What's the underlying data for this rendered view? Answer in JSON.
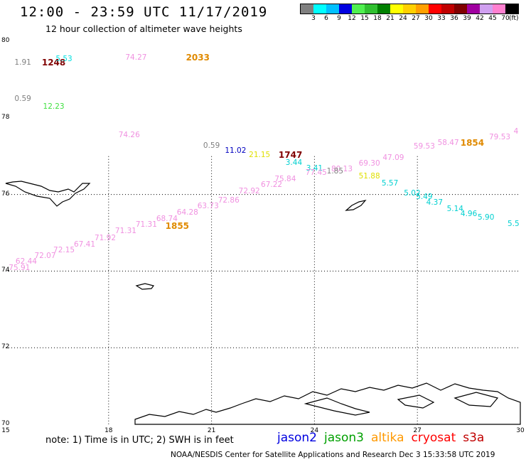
{
  "header": {
    "title": "12:00 - 23:59 UTC 11/17/2019",
    "subtitle": "12 hour collection of altimeter wave heights"
  },
  "colorbar": {
    "colors": [
      "#808080",
      "#00ffff",
      "#00c0ff",
      "#0000e0",
      "#50f050",
      "#30c030",
      "#008000",
      "#ffff00",
      "#ffd000",
      "#ffa000",
      "#ff0000",
      "#c00000",
      "#800000",
      "#a000a0",
      "#d0a0f0",
      "#ff80d0",
      "#000000"
    ],
    "labels": [
      "3",
      "6",
      "9",
      "12",
      "15",
      "18",
      "21",
      "24",
      "27",
      "30",
      "33",
      "36",
      "39",
      "42",
      "45",
      "70"
    ],
    "unit": "(ft)"
  },
  "axes": {
    "y_labels": [
      "80",
      "78",
      "76",
      "74",
      "72",
      "70"
    ],
    "x_labels": [
      "15",
      "18",
      "21",
      "24",
      "27",
      "30"
    ]
  },
  "map_data": {
    "lat_range": [
      70,
      80
    ],
    "lon_range": [
      15,
      30
    ],
    "labels": [
      {
        "text": "1.91",
        "lon": 15.5,
        "lat": 79.44,
        "color": "#808080"
      },
      {
        "text": "1248",
        "lon": 16.4,
        "lat": 79.44,
        "color": "#800000",
        "ship": true
      },
      {
        "text": "5.53",
        "lon": 16.7,
        "lat": 79.53,
        "color": "#00e0e0"
      },
      {
        "text": "74.27",
        "lon": 18.8,
        "lat": 79.57,
        "color": "#f090e0"
      },
      {
        "text": "2033",
        "lon": 20.6,
        "lat": 79.57,
        "color": "#e08a00",
        "ship": true
      },
      {
        "text": "0.59",
        "lon": 15.5,
        "lat": 78.49,
        "color": "#808080"
      },
      {
        "text": "12.23",
        "lon": 16.4,
        "lat": 78.3,
        "color": "#40e040"
      },
      {
        "text": "74.26",
        "lon": 18.6,
        "lat": 77.55,
        "color": "#f090e0"
      },
      {
        "text": "0.59",
        "lon": 21.0,
        "lat": 77.27,
        "color": "#808080"
      },
      {
        "text": "11.02",
        "lon": 21.7,
        "lat": 77.15,
        "color": "#0000c0"
      },
      {
        "text": "21.15",
        "lon": 22.4,
        "lat": 77.04,
        "color": "#e0e000"
      },
      {
        "text": "1747",
        "lon": 23.3,
        "lat": 77.04,
        "color": "#800000",
        "ship": true
      },
      {
        "text": "3.44",
        "lon": 23.4,
        "lat": 76.83,
        "color": "#00d0d0"
      },
      {
        "text": "3.41",
        "lon": 24.0,
        "lat": 76.68,
        "color": "#00d0d0"
      },
      {
        "text": "80.13",
        "lon": 24.8,
        "lat": 76.66,
        "color": "#f090e0"
      },
      {
        "text": "69.30",
        "lon": 25.6,
        "lat": 76.81,
        "color": "#f090e0"
      },
      {
        "text": "47.09",
        "lon": 26.3,
        "lat": 76.96,
        "color": "#f090e0"
      },
      {
        "text": "1.85",
        "lon": 24.6,
        "lat": 76.6,
        "color": "#808080"
      },
      {
        "text": "77.45",
        "lon": 24.05,
        "lat": 76.57,
        "color": "#f090e0"
      },
      {
        "text": "51.88",
        "lon": 25.6,
        "lat": 76.47,
        "color": "#e0e000"
      },
      {
        "text": "75.84",
        "lon": 23.15,
        "lat": 76.41,
        "color": "#f090e0"
      },
      {
        "text": "5.57",
        "lon": 26.2,
        "lat": 76.29,
        "color": "#00d0d0"
      },
      {
        "text": "67.22",
        "lon": 22.75,
        "lat": 76.25,
        "color": "#f090e0"
      },
      {
        "text": "5.02",
        "lon": 26.85,
        "lat": 76.03,
        "color": "#00d0d0"
      },
      {
        "text": "72.92",
        "lon": 22.1,
        "lat": 76.08,
        "color": "#f090e0"
      },
      {
        "text": "5.49",
        "lon": 27.2,
        "lat": 75.93,
        "color": "#00d0d0"
      },
      {
        "text": "72.86",
        "lon": 21.5,
        "lat": 75.84,
        "color": "#f090e0"
      },
      {
        "text": "4.37",
        "lon": 27.5,
        "lat": 75.79,
        "color": "#00d0d0"
      },
      {
        "text": "63.73",
        "lon": 20.9,
        "lat": 75.7,
        "color": "#f090e0"
      },
      {
        "text": "5.14",
        "lon": 28.1,
        "lat": 75.62,
        "color": "#00d0d0"
      },
      {
        "text": "64.28",
        "lon": 20.3,
        "lat": 75.53,
        "color": "#f090e0"
      },
      {
        "text": "4.96",
        "lon": 28.5,
        "lat": 75.5,
        "color": "#00d0d0"
      },
      {
        "text": "68.74",
        "lon": 19.7,
        "lat": 75.36,
        "color": "#f090e0"
      },
      {
        "text": "5.90",
        "lon": 29.0,
        "lat": 75.4,
        "color": "#00d0d0"
      },
      {
        "text": "71.31",
        "lon": 19.1,
        "lat": 75.21,
        "color": "#f090e0"
      },
      {
        "text": "1855",
        "lon": 20.0,
        "lat": 75.17,
        "color": "#e08a00",
        "ship": true
      },
      {
        "text": "5.5",
        "lon": 29.8,
        "lat": 75.24,
        "color": "#00d0d0"
      },
      {
        "text": "71.31",
        "lon": 18.5,
        "lat": 75.05,
        "color": "#f090e0"
      },
      {
        "text": "71.92",
        "lon": 17.9,
        "lat": 74.87,
        "color": "#f090e0"
      },
      {
        "text": "67.41",
        "lon": 17.3,
        "lat": 74.7,
        "color": "#f090e0"
      },
      {
        "text": "72.15",
        "lon": 16.7,
        "lat": 74.55,
        "color": "#f090e0"
      },
      {
        "text": "72.07",
        "lon": 16.15,
        "lat": 74.4,
        "color": "#f090e0"
      },
      {
        "text": "62.44",
        "lon": 15.6,
        "lat": 74.25,
        "color": "#f090e0"
      },
      {
        "text": "75.91",
        "lon": 15.4,
        "lat": 74.09,
        "color": "#f090e0"
      },
      {
        "text": "59.53",
        "lon": 27.2,
        "lat": 77.25,
        "color": "#f090e0"
      },
      {
        "text": "58.47",
        "lon": 27.9,
        "lat": 77.35,
        "color": "#f090e0"
      },
      {
        "text": "1854",
        "lon": 28.6,
        "lat": 77.35,
        "color": "#e08a00",
        "ship": true
      },
      {
        "text": "79.53",
        "lon": 29.4,
        "lat": 77.5,
        "color": "#f090e0"
      },
      {
        "text": "4",
        "lon": 30.0,
        "lat": 77.65,
        "color": "#f090e0"
      }
    ]
  },
  "footer": {
    "note": "note: 1) Time is in UTC; 2) SWH is in feet",
    "legend": [
      {
        "text": "jason2",
        "color": "#0000e0"
      },
      {
        "text": "jason3",
        "color": "#00a000"
      },
      {
        "text": "altika",
        "color": "#ff9900"
      },
      {
        "text": "cryosat",
        "color": "#ff0000"
      },
      {
        "text": "s3a",
        "color": "#c00000"
      }
    ],
    "credit": "NOAA/NESDIS Center for Satellite Applications and Research    Dec  3 15:33:58 UTC 2019"
  }
}
